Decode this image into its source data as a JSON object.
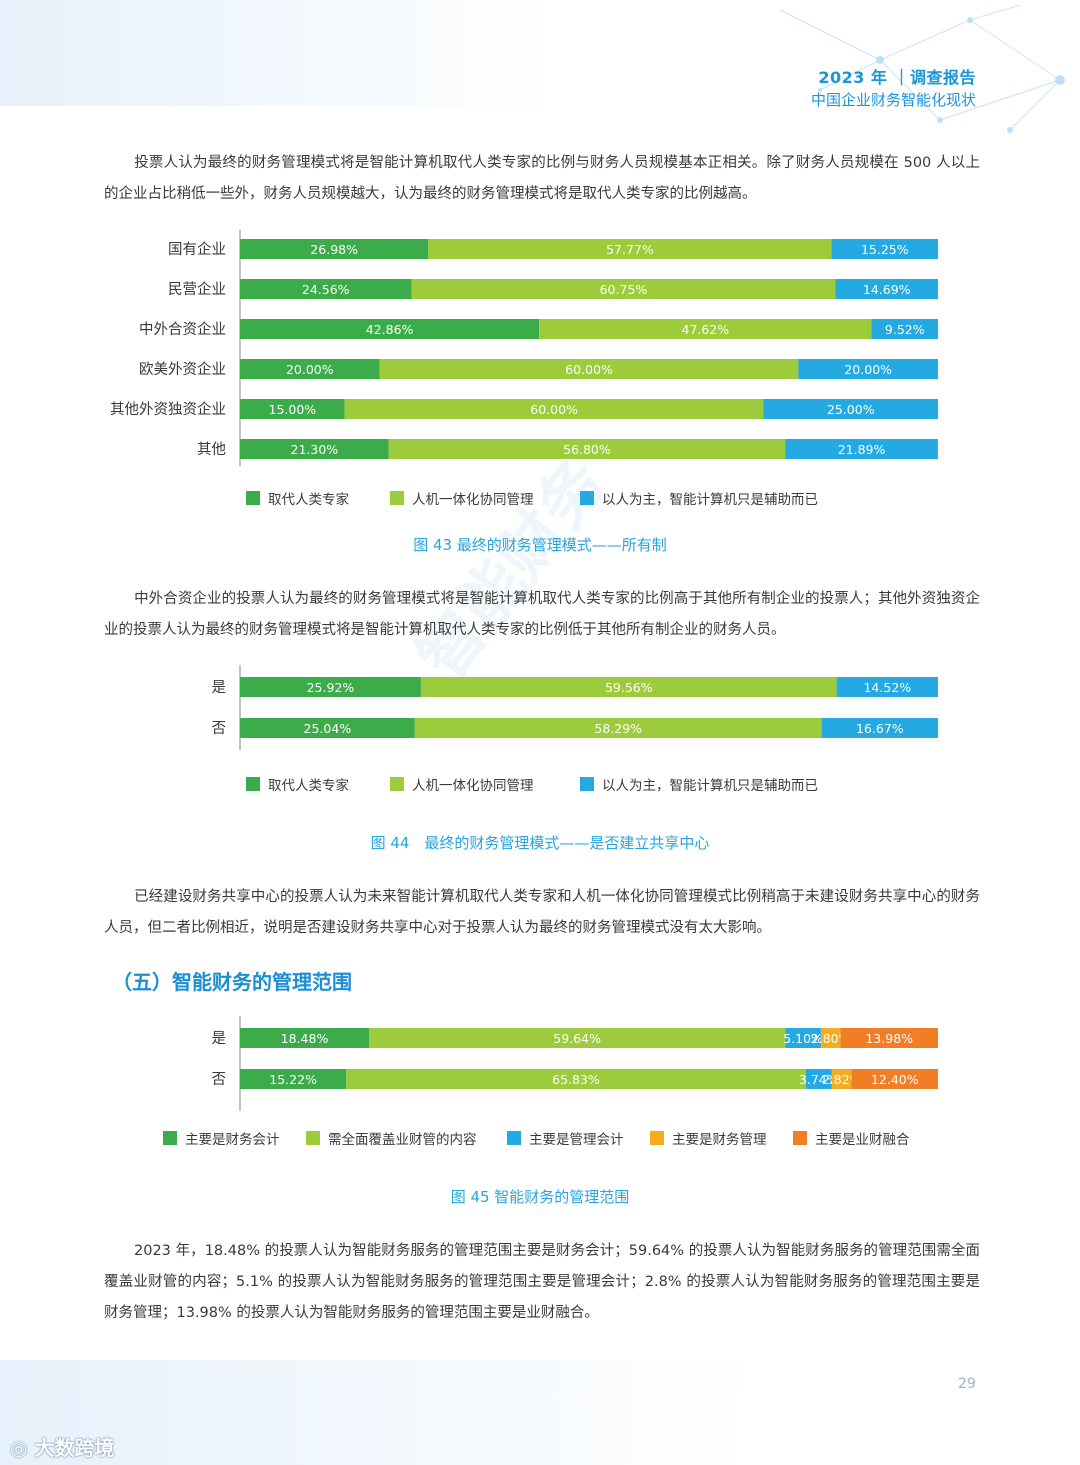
{
  "header": {
    "title": "2023 年 ｜调查报告",
    "subtitle": "中国企业财务智能化现状"
  },
  "paragraphs": {
    "p1": "投票人认为最终的财务管理模式将是智能计算机取代人类专家的比例与财务人员规模基本正相关。除了财务人员规模在 500 人以上的企业占比稍低一些外，财务人员规模越大，认为最终的财务管理模式将是取代人类专家的比例越高。",
    "p2": "中外合资企业的投票人认为最终的财务管理模式将是智能计算机取代人类专家的比例高于其他所有制企业的投票人；其他外资独资企业的投票人认为最终的财务管理模式将是智能计算机取代人类专家的比例低于其他所有制企业的财务人员。",
    "p3": "已经建设财务共享中心的投票人认为未来智能计算机取代人类专家和人机一体化协同管理模式比例稍高于未建设财务共享中心的财务人员，但二者比例相近，说明是否建设财务共享中心对于投票人认为最终的财务管理模式没有太大影响。",
    "p4": "2023 年，18.48% 的投票人认为智能财务服务的管理范围主要是财务会计；59.64% 的投票人认为智能财务服务的管理范围需全面覆盖业财管的内容；5.1% 的投票人认为智能财务服务的管理范围主要是管理会计；2.8% 的投票人认为智能财务服务的管理范围主要是财务管理；13.98% 的投票人认为智能财务服务的管理范围主要是业财融合。"
  },
  "section_title": "（五）智能财务的管理范围",
  "captions": {
    "fig43": "图 43 最终的财务管理模式——所有制",
    "fig44": "图 44　最终的财务管理模式——是否建立共享中心",
    "fig45": "图 45  智能财务的管理范围"
  },
  "page_number": "29",
  "footer_logo": "大数跨境",
  "watermark": "智能财务",
  "colors": {
    "accent": "#1b95d8",
    "dark_green": "#3cab4a",
    "light_green": "#9ccc3c",
    "blue": "#24a9e3",
    "yellow": "#f4ad1f",
    "orange": "#f17d25"
  },
  "chart_data": [
    {
      "type": "bar",
      "orientation": "horizontal",
      "stacked": true,
      "categories": [
        "国有企业",
        "民营企业",
        "中外合资企业",
        "欧美外资企业",
        "其他外资独资企业",
        "其他"
      ],
      "series": [
        {
          "name": "取代人类专家",
          "values": [
            26.98,
            24.56,
            42.86,
            20.0,
            15.0,
            21.3
          ]
        },
        {
          "name": "人机一体化协同管理",
          "values": [
            57.77,
            60.75,
            47.62,
            60.0,
            60.0,
            56.8
          ]
        },
        {
          "name": "以人为主，智能计算机只是辅助而已",
          "values": [
            15.25,
            14.69,
            9.52,
            20.0,
            25.0,
            21.89
          ]
        }
      ],
      "legend": "bottom"
    },
    {
      "type": "bar",
      "orientation": "horizontal",
      "stacked": true,
      "categories": [
        "是",
        "否"
      ],
      "series": [
        {
          "name": "取代人类专家",
          "values": [
            25.92,
            25.04
          ]
        },
        {
          "name": "人机一体化协同管理",
          "values": [
            59.56,
            58.29
          ]
        },
        {
          "name": "以人为主，智能计算机只是辅助而已",
          "values": [
            14.52,
            16.67
          ]
        }
      ],
      "legend": "bottom"
    },
    {
      "type": "bar",
      "orientation": "horizontal",
      "stacked": true,
      "categories": [
        "是",
        "否"
      ],
      "series": [
        {
          "name": "主要是财务会计",
          "values": [
            18.48,
            15.22
          ]
        },
        {
          "name": "需全面覆盖业财管的内容",
          "values": [
            59.64,
            65.83
          ]
        },
        {
          "name": "主要是管理会计",
          "values": [
            5.1,
            3.74
          ]
        },
        {
          "name": "主要是财务管理",
          "values": [
            2.8,
            2.82
          ]
        },
        {
          "name": "主要是业财融合",
          "values": [
            13.98,
            12.4
          ]
        }
      ],
      "legend": "bottom"
    }
  ]
}
